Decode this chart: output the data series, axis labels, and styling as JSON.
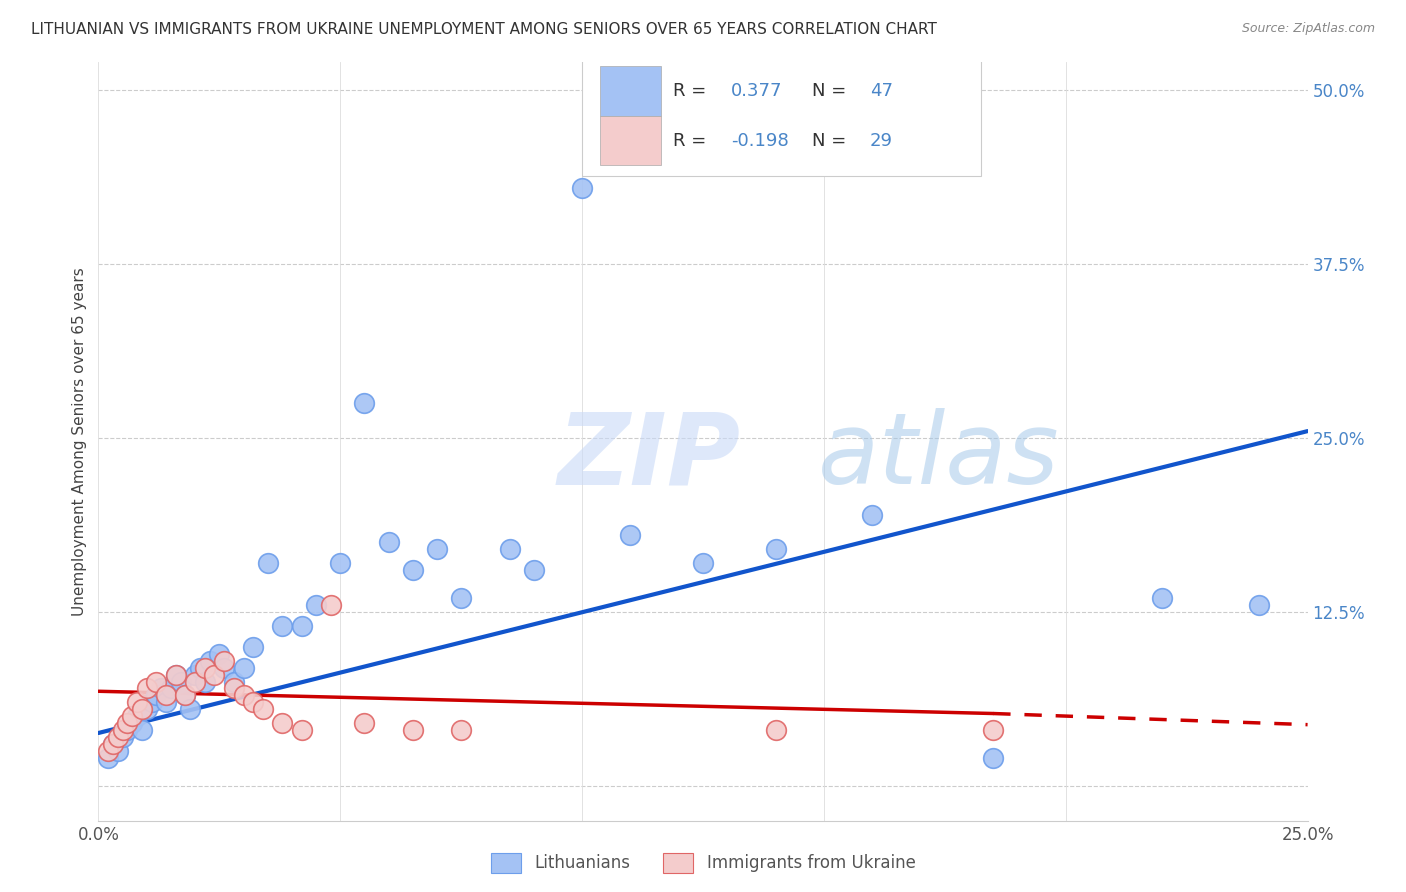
{
  "title": "LITHUANIAN VS IMMIGRANTS FROM UKRAINE UNEMPLOYMENT AMONG SENIORS OVER 65 YEARS CORRELATION CHART",
  "source": "Source: ZipAtlas.com",
  "ylabel": "Unemployment Among Seniors over 65 years",
  "x_min": 0.0,
  "x_max": 0.25,
  "y_min": -0.025,
  "y_max": 0.52,
  "x_ticks": [
    0.0,
    0.05,
    0.1,
    0.15,
    0.2,
    0.25
  ],
  "x_tick_labels": [
    "0.0%",
    "",
    "",
    "",
    "",
    "25.0%"
  ],
  "y_ticks_right": [
    0.0,
    0.125,
    0.25,
    0.375,
    0.5
  ],
  "y_tick_labels_right": [
    "",
    "12.5%",
    "25.0%",
    "37.5%",
    "50.0%"
  ],
  "blue_color": "#a4c2f4",
  "blue_edge_color": "#6d9eeb",
  "pink_color": "#f4cccc",
  "pink_edge_color": "#e06666",
  "blue_line_color": "#1155cc",
  "pink_line_color": "#cc0000",
  "watermark_zip": "ZIP",
  "watermark_atlas": "atlas",
  "legend1_label": "Lithuanians",
  "legend2_label": "Immigrants from Ukraine",
  "blue_R": "0.377",
  "blue_N": "47",
  "pink_R": "-0.198",
  "pink_N": "29",
  "blue_scatter_x": [
    0.002,
    0.003,
    0.004,
    0.005,
    0.006,
    0.007,
    0.008,
    0.009,
    0.01,
    0.011,
    0.012,
    0.013,
    0.014,
    0.015,
    0.016,
    0.017,
    0.018,
    0.019,
    0.02,
    0.021,
    0.022,
    0.023,
    0.025,
    0.026,
    0.028,
    0.03,
    0.032,
    0.035,
    0.038,
    0.042,
    0.045,
    0.05,
    0.055,
    0.06,
    0.065,
    0.07,
    0.075,
    0.085,
    0.09,
    0.1,
    0.11,
    0.125,
    0.14,
    0.16,
    0.185,
    0.22,
    0.24
  ],
  "blue_scatter_y": [
    0.02,
    0.03,
    0.025,
    0.035,
    0.04,
    0.045,
    0.05,
    0.04,
    0.055,
    0.06,
    0.065,
    0.07,
    0.06,
    0.07,
    0.08,
    0.075,
    0.065,
    0.055,
    0.08,
    0.085,
    0.075,
    0.09,
    0.095,
    0.085,
    0.075,
    0.085,
    0.1,
    0.16,
    0.115,
    0.115,
    0.13,
    0.16,
    0.275,
    0.175,
    0.155,
    0.17,
    0.135,
    0.17,
    0.155,
    0.43,
    0.18,
    0.16,
    0.17,
    0.195,
    0.02,
    0.135,
    0.13
  ],
  "pink_scatter_x": [
    0.002,
    0.003,
    0.004,
    0.005,
    0.006,
    0.007,
    0.008,
    0.009,
    0.01,
    0.012,
    0.014,
    0.016,
    0.018,
    0.02,
    0.022,
    0.024,
    0.026,
    0.028,
    0.03,
    0.032,
    0.034,
    0.038,
    0.042,
    0.048,
    0.055,
    0.065,
    0.075,
    0.14,
    0.185
  ],
  "pink_scatter_y": [
    0.025,
    0.03,
    0.035,
    0.04,
    0.045,
    0.05,
    0.06,
    0.055,
    0.07,
    0.075,
    0.065,
    0.08,
    0.065,
    0.075,
    0.085,
    0.08,
    0.09,
    0.07,
    0.065,
    0.06,
    0.055,
    0.045,
    0.04,
    0.13,
    0.045,
    0.04,
    0.04,
    0.04,
    0.04
  ],
  "blue_line_x0": 0.0,
  "blue_line_x1": 0.25,
  "blue_line_y0": 0.038,
  "blue_line_y1": 0.255,
  "pink_line_x0": 0.0,
  "pink_line_x1": 0.185,
  "pink_line_x1_dash": 0.25,
  "pink_line_y0": 0.068,
  "pink_line_y1": 0.052,
  "pink_line_y1_dash": 0.044
}
